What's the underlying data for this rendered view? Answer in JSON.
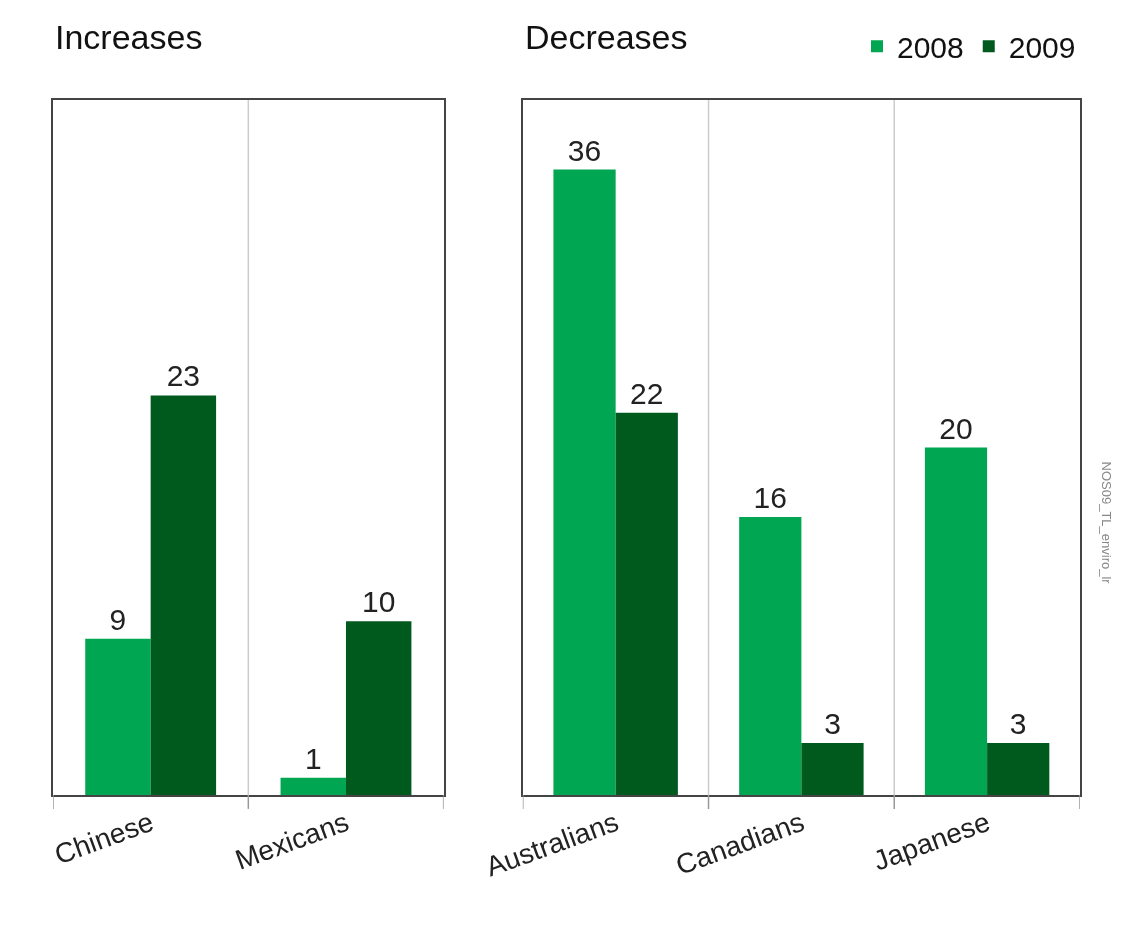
{
  "chart_data": [
    {
      "type": "bar",
      "title": "Increases",
      "categories": [
        "Chinese",
        "Mexicans"
      ],
      "series": [
        {
          "name": "2008",
          "color": "#00a651",
          "values": [
            9,
            1
          ]
        },
        {
          "name": "2009",
          "color": "#005a1e",
          "values": [
            23,
            10
          ]
        }
      ],
      "ylim": [
        0,
        40
      ],
      "data_labels": true,
      "grid": "x",
      "legend": "top right",
      "tick_labels": "x"
    },
    {
      "type": "bar",
      "title": "Decreases",
      "categories": [
        "Australians",
        "Canadians",
        "Japanese"
      ],
      "series": [
        {
          "name": "2008",
          "color": "#00a651",
          "values": [
            36,
            16,
            20
          ]
        },
        {
          "name": "2009",
          "color": "#005a1e",
          "values": [
            22,
            3,
            3
          ]
        }
      ],
      "ylim": [
        0,
        40
      ],
      "data_labels": true,
      "grid": "x",
      "legend": "top right",
      "tick_labels": "x",
      "annotations": [
        "NOS09_TL_enviro_lr"
      ]
    }
  ]
}
